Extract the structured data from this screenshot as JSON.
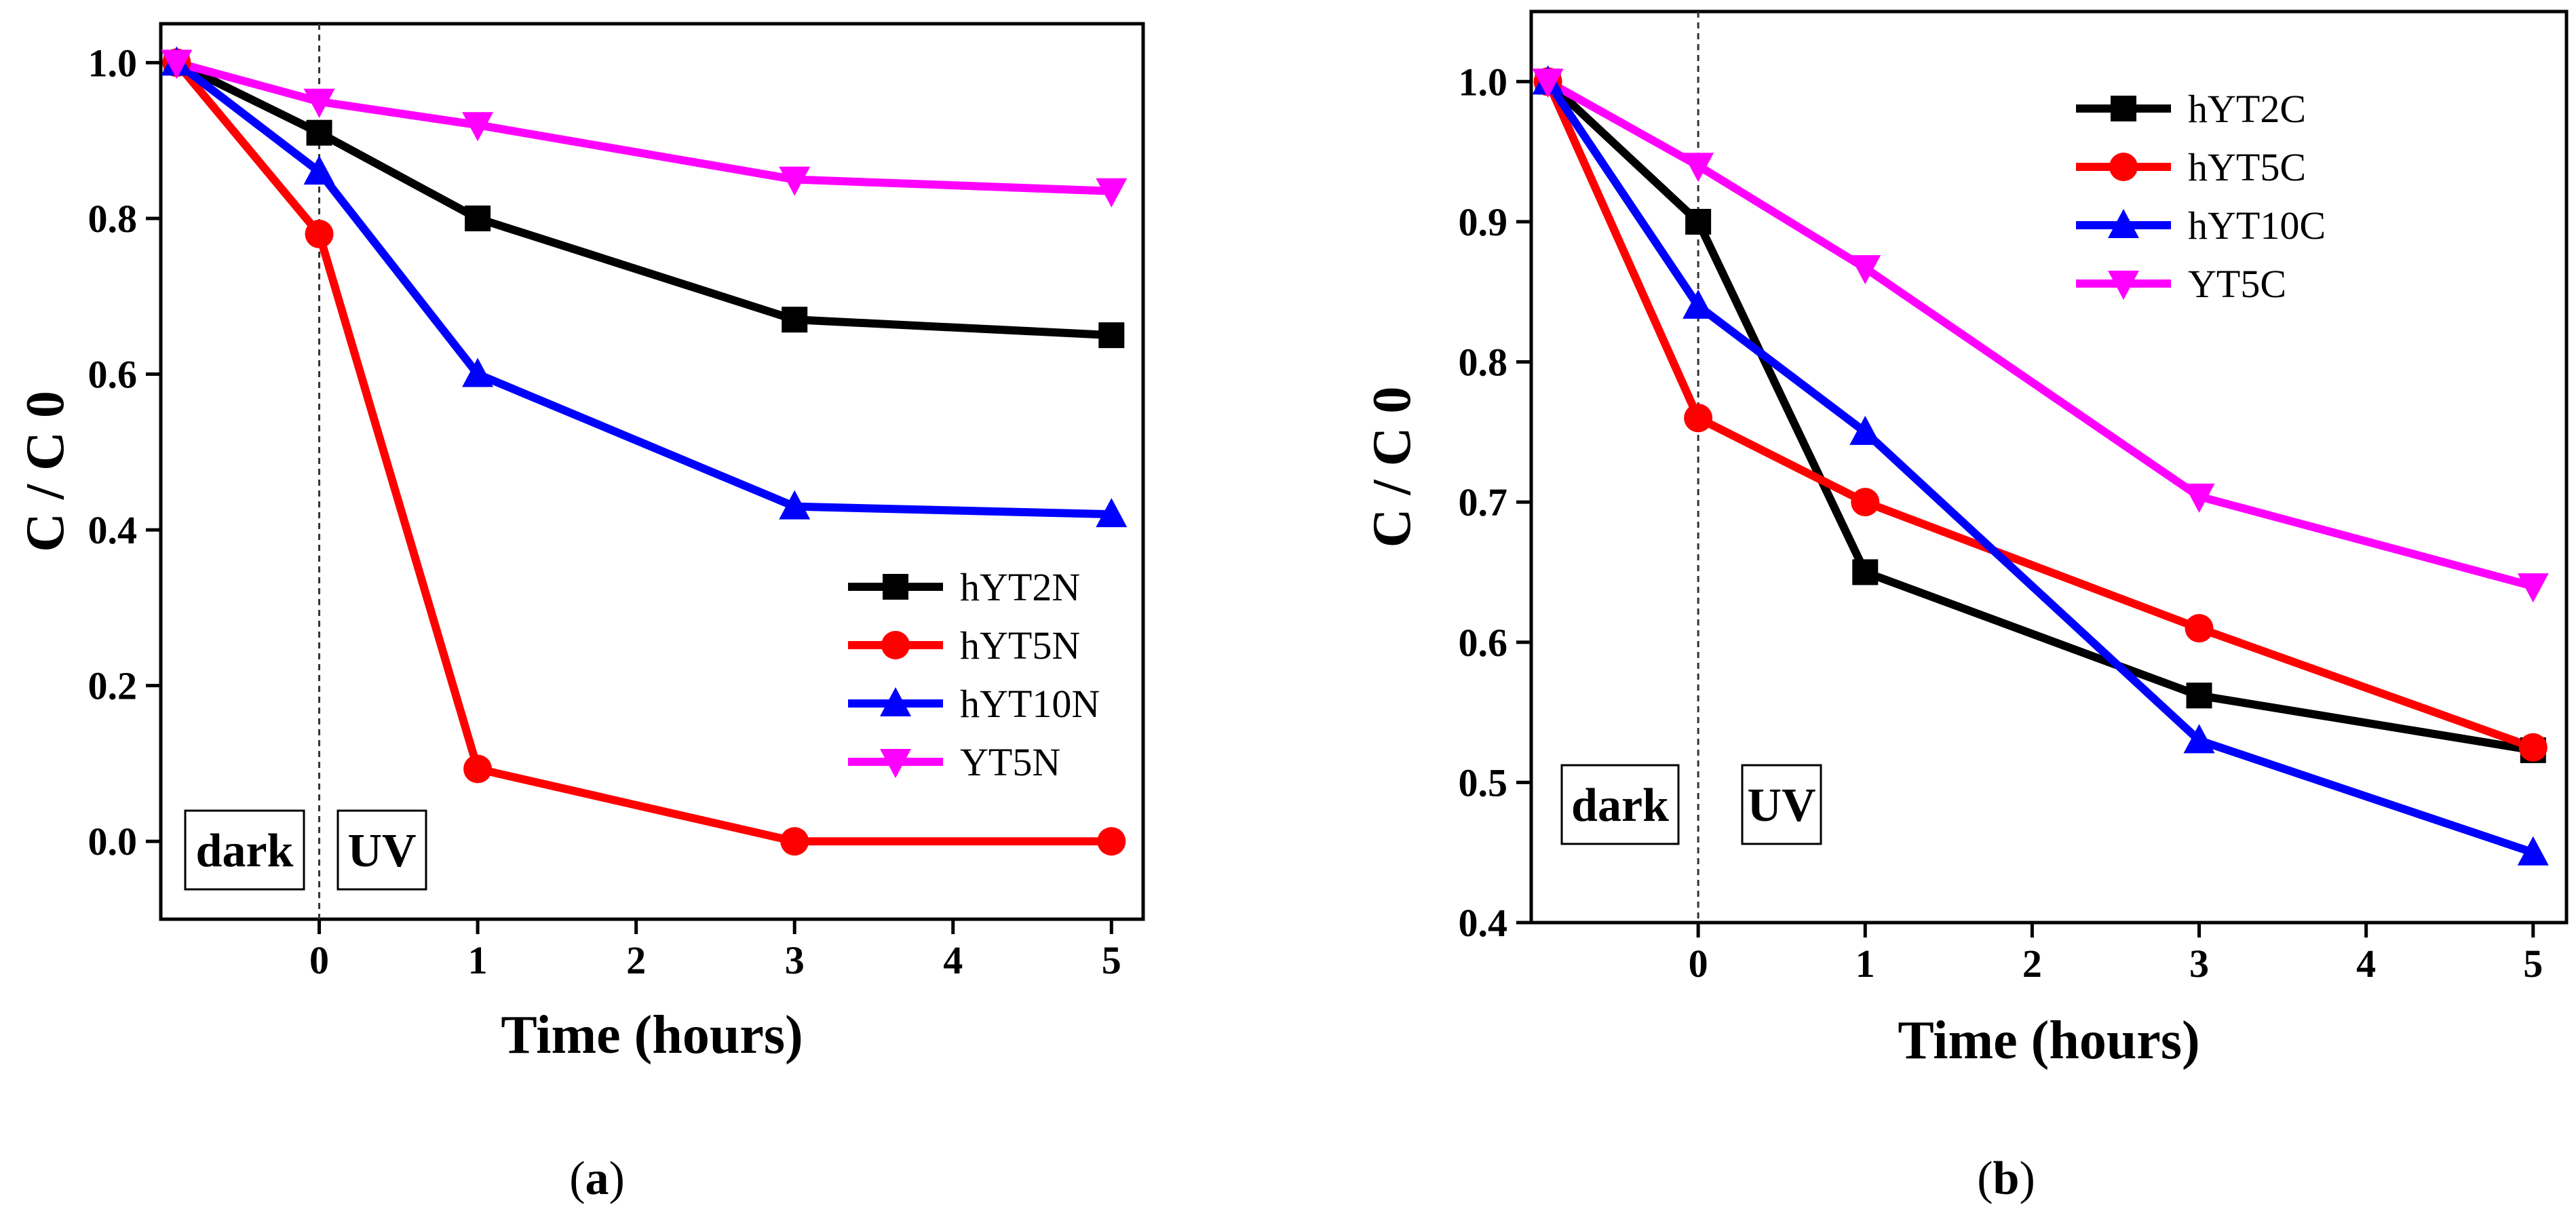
{
  "chart_data": [
    {
      "type": "line",
      "panel": "a",
      "caption_open": "(",
      "caption_letter": "a",
      "caption_close": ")",
      "xlabel": "Time (hours)",
      "ylabel": "C / C 0",
      "xlim": [
        -1,
        5.2
      ],
      "ylim": [
        -0.1,
        1.05
      ],
      "xticks": [
        {
          "value": 0,
          "label": "0"
        },
        {
          "value": 1,
          "label": "1"
        },
        {
          "value": 2,
          "label": "2"
        },
        {
          "value": 3,
          "label": "3"
        },
        {
          "value": 4,
          "label": "4"
        },
        {
          "value": 5,
          "label": "5"
        }
      ],
      "yticks": [
        {
          "value": 0.0,
          "label": "0.0"
        },
        {
          "value": 0.2,
          "label": "0.2"
        },
        {
          "value": 0.4,
          "label": "0.4"
        },
        {
          "value": 0.6,
          "label": "0.6"
        },
        {
          "value": 0.8,
          "label": "0.8"
        },
        {
          "value": 1.0,
          "label": "1.0"
        }
      ],
      "x": [
        -0.9,
        0,
        1,
        3,
        5
      ],
      "series": [
        {
          "name": "hYT2N",
          "color": "#000000",
          "marker": "square",
          "values": [
            1.0,
            0.91,
            0.8,
            0.67,
            0.65
          ]
        },
        {
          "name": "hYT5N",
          "color": "#ff0000",
          "marker": "circle",
          "values": [
            1.0,
            0.78,
            0.093,
            0.0,
            0.0
          ]
        },
        {
          "name": "hYT10N",
          "color": "#0000ff",
          "marker": "triangle-up",
          "values": [
            1.0,
            0.86,
            0.6,
            0.43,
            0.42
          ]
        },
        {
          "name": "YT5N",
          "color": "#ff00ff",
          "marker": "triangle-down",
          "values": [
            1.0,
            0.95,
            0.92,
            0.85,
            0.835
          ]
        }
      ],
      "divider_x": 0,
      "annotations": [
        "dark",
        "UV"
      ],
      "legend_position": "right-center"
    },
    {
      "type": "line",
      "panel": "b",
      "caption_open": "(",
      "caption_letter": "b",
      "caption_close": ")",
      "xlabel": "Time (hours)",
      "ylabel": "C / C 0",
      "xlim": [
        -1,
        5.2
      ],
      "ylim": [
        0.4,
        1.05
      ],
      "xticks": [
        {
          "value": 0,
          "label": "0"
        },
        {
          "value": 1,
          "label": "1"
        },
        {
          "value": 2,
          "label": "2"
        },
        {
          "value": 3,
          "label": "3"
        },
        {
          "value": 4,
          "label": "4"
        },
        {
          "value": 5,
          "label": "5"
        }
      ],
      "yticks": [
        {
          "value": 0.4,
          "label": "0.4"
        },
        {
          "value": 0.5,
          "label": "0.5"
        },
        {
          "value": 0.6,
          "label": "0.6"
        },
        {
          "value": 0.7,
          "label": "0.7"
        },
        {
          "value": 0.8,
          "label": "0.8"
        },
        {
          "value": 0.9,
          "label": "0.9"
        },
        {
          "value": 1.0,
          "label": "1.0"
        }
      ],
      "x": [
        -0.9,
        0,
        1,
        3,
        5
      ],
      "series": [
        {
          "name": "hYT2C",
          "color": "#000000",
          "marker": "square",
          "values": [
            1.0,
            0.9,
            0.65,
            0.562,
            0.523
          ]
        },
        {
          "name": "hYT5C",
          "color": "#ff0000",
          "marker": "circle",
          "values": [
            1.0,
            0.76,
            0.7,
            0.61,
            0.525
          ]
        },
        {
          "name": "hYT10C",
          "color": "#0000ff",
          "marker": "triangle-up",
          "values": [
            1.0,
            0.84,
            0.75,
            0.53,
            0.45
          ]
        },
        {
          "name": "YT5C",
          "color": "#ff00ff",
          "marker": "triangle-down",
          "values": [
            1.0,
            0.94,
            0.867,
            0.704,
            0.64
          ]
        }
      ],
      "divider_x": 0,
      "annotations": [
        "dark",
        "UV"
      ],
      "legend_position": "top-center"
    }
  ]
}
